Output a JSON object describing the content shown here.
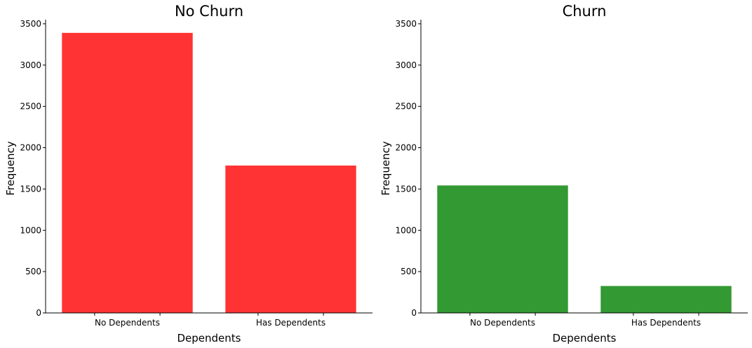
{
  "chart_data": [
    {
      "type": "bar",
      "title": "No Churn",
      "xlabel": "Dependents",
      "ylabel": "Frequency",
      "categories": [
        "No Dependents",
        "Has Dependents"
      ],
      "values": [
        3390,
        1784
      ],
      "ylim": [
        0,
        3550
      ],
      "yticks": [
        0,
        500,
        1000,
        1500,
        2000,
        2500,
        3000,
        3500
      ],
      "color": "#ff3333",
      "grid": false
    },
    {
      "type": "bar",
      "title": "Churn",
      "xlabel": "Dependents",
      "ylabel": "Frequency",
      "categories": [
        "No Dependents",
        "Has Dependents"
      ],
      "values": [
        1543,
        326
      ],
      "ylim": [
        0,
        3550
      ],
      "yticks": [
        0,
        500,
        1000,
        1500,
        2000,
        2500,
        3000,
        3500
      ],
      "color": "#339933",
      "grid": false
    }
  ]
}
